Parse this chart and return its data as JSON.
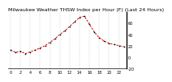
{
  "title": "Milwaukee Weather THSW Index per Hour (F) (Last 24 Hours)",
  "x_values": [
    0,
    1,
    2,
    3,
    4,
    5,
    6,
    7,
    8,
    9,
    10,
    11,
    12,
    13,
    14,
    15,
    16,
    17,
    18,
    19,
    20,
    21,
    22,
    23
  ],
  "y_values": [
    12,
    8,
    10,
    6,
    9,
    12,
    16,
    20,
    26,
    32,
    40,
    46,
    54,
    62,
    70,
    72,
    58,
    44,
    34,
    28,
    24,
    22,
    20,
    18
  ],
  "ylim": [
    -20,
    80
  ],
  "xlim": [
    -0.5,
    23.5
  ],
  "line_color": "#cc0000",
  "dot_color": "#000000",
  "bg_color": "#ffffff",
  "grid_color": "#999999",
  "title_fontsize": 4.5,
  "tick_fontsize": 3.5,
  "ylabel_nums": [
    -20,
    0,
    20,
    40,
    60
  ],
  "ylabel_vals": [
    "-20",
    "0",
    "20",
    "40",
    "60"
  ],
  "xtick_step": 2
}
